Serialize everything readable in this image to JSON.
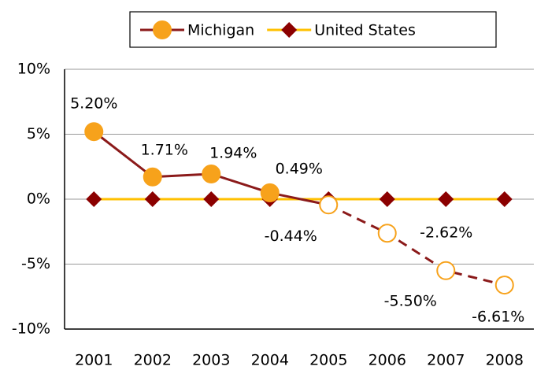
{
  "chart_data": {
    "type": "line",
    "categories": [
      "2001",
      "2002",
      "2003",
      "2004",
      "2005",
      "2006",
      "2007",
      "2008"
    ],
    "series": [
      {
        "name": "Michigan",
        "color": "#8b1a1a",
        "marker_color": "#f7a21b",
        "marker": "circle",
        "values": [
          5.2,
          1.71,
          1.94,
          0.49,
          -0.44,
          -2.62,
          -5.5,
          -6.61
        ],
        "value_labels": [
          "5.20%",
          "1.71%",
          "1.94%",
          "0.49%",
          "-0.44%",
          "-2.62%",
          "-5.50%",
          "-6.61%"
        ],
        "projected_from": "2005"
      },
      {
        "name": "United States",
        "color": "#ffc000",
        "marker_color": "#8b0000",
        "marker": "diamond",
        "values": [
          0,
          0,
          0,
          0,
          0,
          0,
          0,
          0
        ]
      }
    ],
    "ylim": [
      -10,
      10
    ],
    "yticks": [
      {
        "value": -10,
        "label": "-10%"
      },
      {
        "value": -5,
        "label": "-5%"
      },
      {
        "value": 0,
        "label": "0%"
      },
      {
        "value": 5,
        "label": "5%"
      },
      {
        "value": 10,
        "label": "10%"
      }
    ],
    "grid": true,
    "legend": "top"
  }
}
